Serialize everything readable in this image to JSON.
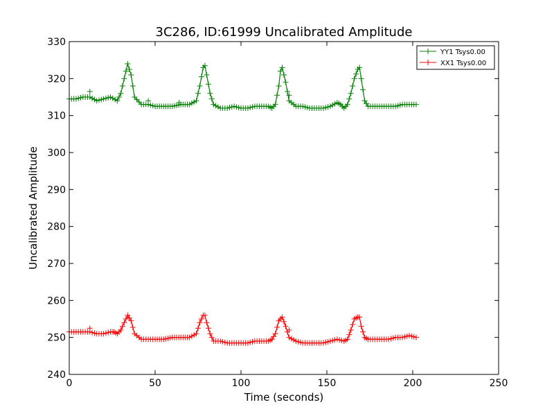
{
  "chart_data": {
    "type": "line",
    "title": "3C286, ID:61999 Uncalibrated Amplitude",
    "xlabel": "Time (seconds)",
    "ylabel": "Uncalibrated Amplitude",
    "xlim": [
      0,
      250
    ],
    "ylim": [
      240,
      330
    ],
    "x_ticks": [
      "0",
      "50",
      "100",
      "150",
      "200",
      "250"
    ],
    "y_ticks": [
      "240",
      "250",
      "260",
      "270",
      "280",
      "290",
      "300",
      "310",
      "320",
      "330"
    ],
    "grid": false,
    "legend_position": "top-right",
    "marker": "+",
    "series": [
      {
        "name": "YY1 Tsys0.00",
        "color": "#008000",
        "x": [
          0,
          4,
          8,
          12,
          16,
          20,
          24,
          28,
          30,
          32,
          34,
          36,
          38,
          42,
          46,
          50,
          55,
          60,
          65,
          70,
          74,
          76,
          78,
          79,
          80,
          82,
          84,
          88,
          92,
          96,
          100,
          104,
          108,
          112,
          116,
          118,
          120,
          122,
          123,
          124,
          126,
          128,
          132,
          136,
          140,
          144,
          148,
          152,
          156,
          158,
          160,
          162,
          164,
          166,
          168,
          169,
          170,
          172,
          174,
          178,
          182,
          186,
          190,
          194,
          198,
          202
        ],
        "y": [
          314.5,
          314.5,
          315,
          315,
          314,
          314.5,
          315,
          314,
          316,
          320,
          324,
          321,
          315,
          313,
          313,
          312.5,
          312.5,
          312.5,
          313,
          313,
          314,
          318,
          323,
          323.5,
          321,
          316,
          313,
          312,
          312,
          312.5,
          312,
          312,
          312.5,
          312.5,
          312.5,
          312,
          313,
          318,
          322,
          323,
          319,
          314,
          312.5,
          312.5,
          312,
          312,
          312,
          312.5,
          313.5,
          313,
          312,
          313,
          316,
          320,
          322.5,
          323,
          320,
          314,
          312.5,
          312.5,
          312.5,
          312.5,
          312.5,
          313,
          313,
          313
        ]
      },
      {
        "name": "XX1 Tsys0.00",
        "color": "#ff0000",
        "x": [
          0,
          4,
          8,
          12,
          16,
          20,
          24,
          26,
          28,
          30,
          32,
          34,
          36,
          38,
          42,
          46,
          50,
          55,
          60,
          65,
          70,
          74,
          76,
          78,
          79,
          80,
          82,
          84,
          88,
          92,
          96,
          100,
          104,
          108,
          112,
          116,
          118,
          120,
          122,
          124,
          126,
          128,
          132,
          136,
          140,
          144,
          148,
          152,
          156,
          160,
          162,
          164,
          166,
          168,
          169,
          170,
          172,
          174,
          178,
          182,
          186,
          190,
          194,
          198,
          202
        ],
        "y": [
          251.5,
          251.5,
          251.5,
          251.5,
          251,
          251,
          251.5,
          251.5,
          251,
          252,
          254,
          256,
          254.5,
          251,
          249.5,
          249.5,
          249.5,
          249.5,
          250,
          250,
          250,
          251,
          254,
          256,
          256,
          254,
          251,
          249,
          249,
          248.5,
          248.5,
          248.5,
          248.5,
          249,
          249,
          249,
          249.5,
          251,
          254.5,
          255.5,
          253,
          250,
          249,
          248.5,
          248.5,
          248.5,
          248.5,
          249,
          249.5,
          249,
          249.5,
          252,
          255,
          255.5,
          255.5,
          253,
          250,
          249.5,
          249.5,
          249.5,
          249.5,
          250,
          250,
          250.5,
          250
        ]
      }
    ],
    "outliers": [
      {
        "series": "YY1 Tsys0.00",
        "x": 12,
        "y": 316.5
      },
      {
        "series": "YY1 Tsys0.00",
        "x": 46,
        "y": 314
      },
      {
        "series": "YY1 Tsys0.00",
        "x": 128,
        "y": 315.5
      },
      {
        "series": "YY1 Tsys0.00",
        "x": 64,
        "y": 313.5
      },
      {
        "series": "XX1 Tsys0.00",
        "x": 12,
        "y": 252.5
      },
      {
        "series": "XX1 Tsys0.00",
        "x": 128,
        "y": 252
      }
    ]
  }
}
